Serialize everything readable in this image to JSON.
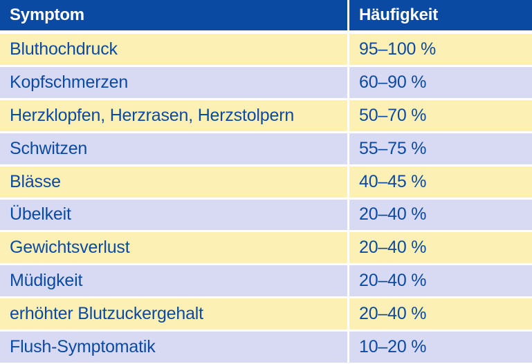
{
  "table": {
    "headers": [
      "Symptom",
      "Häufigkeit"
    ],
    "rows": [
      {
        "symptom": "Bluthochdruck",
        "frequency": "95–100 %"
      },
      {
        "symptom": "Kopfschmerzen",
        "frequency": "60–90 %"
      },
      {
        "symptom": "Herzklopfen, Herzrasen, Herzstolpern",
        "frequency": "50–70 %"
      },
      {
        "symptom": "Schwitzen",
        "frequency": "55–75 %"
      },
      {
        "symptom": "Blässe",
        "frequency": "40–45 %"
      },
      {
        "symptom": "Übelkeit",
        "frequency": "20–40 %"
      },
      {
        "symptom": "Gewichtsverlust",
        "frequency": "20–40 %"
      },
      {
        "symptom": "Müdigkeit",
        "frequency": "20–40 %"
      },
      {
        "symptom": "erhöhter Blutzuckergehalt",
        "frequency": "20–40 %"
      },
      {
        "symptom": "Flush-Symptomatik",
        "frequency": "10–20 %"
      }
    ]
  },
  "colors": {
    "header_bg": "#0b4aa2",
    "header_text": "#ffffff",
    "body_text": "#0b4aa2",
    "row_odd": "#fdf0b4",
    "row_even": "#d7daf2"
  }
}
